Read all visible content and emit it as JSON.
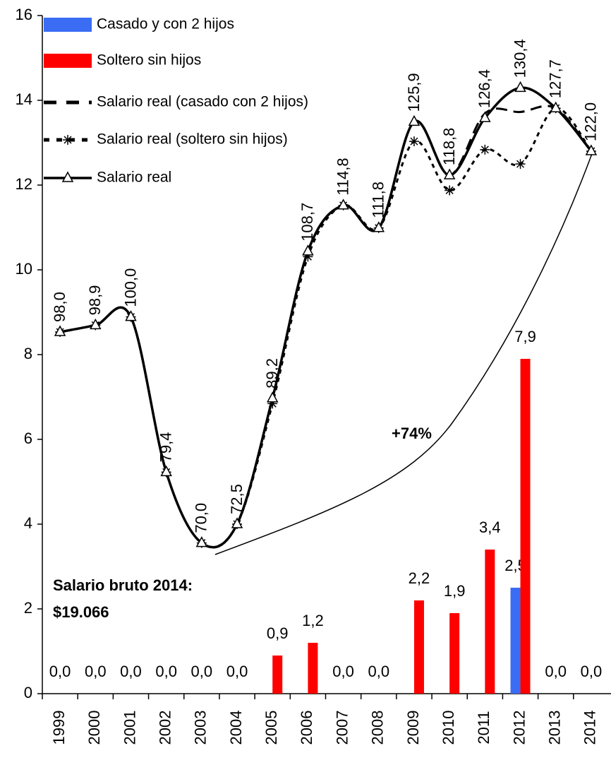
{
  "chart_data": {
    "type": "combo",
    "categories": [
      "1999",
      "2000",
      "2001",
      "2002",
      "2003",
      "2004",
      "2005",
      "2006",
      "2007",
      "2008",
      "2009",
      "2010",
      "2011",
      "2012",
      "2013",
      "2014"
    ],
    "ylim": [
      0,
      16
    ],
    "yticks": [
      0,
      2,
      4,
      6,
      8,
      10,
      12,
      14,
      16
    ],
    "y2lim": [
      50,
      140
    ],
    "series": [
      {
        "name": "Casado y con 2 hijos",
        "type": "bar",
        "color": "#3a6cf4",
        "values": [
          0,
          0,
          0,
          0,
          0,
          0,
          0,
          0,
          0,
          0,
          0,
          0,
          0,
          2.5,
          0,
          0
        ],
        "value_labels": [
          null,
          null,
          null,
          null,
          null,
          null,
          null,
          null,
          null,
          null,
          null,
          null,
          null,
          "2,5",
          null,
          null
        ]
      },
      {
        "name": "Soltero sin hijos",
        "type": "bar",
        "color": "#ff0000",
        "values": [
          0,
          0,
          0,
          0,
          0,
          0,
          0.9,
          1.2,
          0,
          0,
          2.2,
          1.9,
          3.4,
          7.9,
          0,
          0
        ],
        "value_labels": [
          "0,0",
          "0,0",
          "0,0",
          "0,0",
          "0,0",
          "0,0",
          "0,9",
          "1,2",
          "0,0",
          "0,0",
          "2,2",
          "1,9",
          "3,4",
          "7,9",
          "0,0",
          "0,0"
        ]
      },
      {
        "name": "Salario real (casado con 2 hijos)",
        "type": "line",
        "style": "dash",
        "axis": "y2",
        "color": "#000000",
        "values": [
          98.0,
          98.9,
          100.0,
          79.4,
          70.0,
          72.5,
          89.2,
          108.7,
          114.8,
          111.8,
          125.9,
          118.8,
          127.0,
          127.2,
          127.7,
          122.0
        ]
      },
      {
        "name": "Salario real (soltero sin hijos)",
        "type": "line",
        "style": "dot-star",
        "axis": "y2",
        "color": "#000000",
        "values": [
          98.0,
          98.9,
          100.0,
          79.4,
          70.0,
          72.5,
          88.5,
          108.0,
          114.8,
          111.8,
          123.3,
          116.8,
          122.2,
          120.3,
          127.7,
          122.0
        ]
      },
      {
        "name": "Salario real",
        "type": "line",
        "style": "solid-triangle",
        "axis": "y2",
        "color": "#000000",
        "values": [
          98.0,
          98.9,
          100.0,
          79.4,
          70.0,
          72.5,
          89.2,
          108.7,
          114.8,
          111.8,
          125.9,
          118.8,
          126.4,
          130.4,
          127.7,
          122.0
        ],
        "value_labels": [
          "98,0",
          "98,9",
          "100,0",
          "79,4",
          "70,0",
          "72,5",
          "89,2",
          "108,7",
          "114,8",
          "111,8",
          "125,9",
          "118,8",
          "126,4",
          "130,4",
          "127,7",
          "122,0"
        ]
      }
    ],
    "annotations": [
      "+74%",
      "Salario bruto 2014:",
      "$19.066"
    ]
  }
}
